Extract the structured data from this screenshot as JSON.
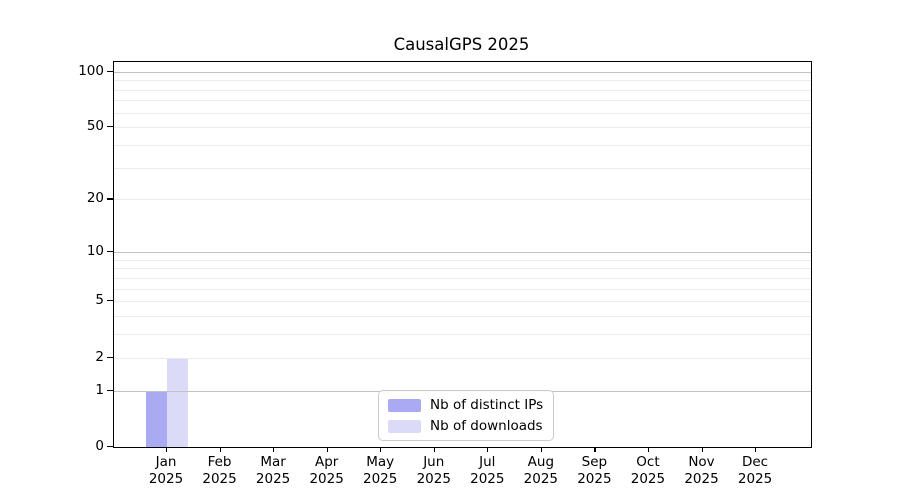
{
  "title": "CausalGPS 2025",
  "chart_data": {
    "type": "bar",
    "title": "CausalGPS 2025",
    "x_categories": [
      "Jan",
      "Feb",
      "Mar",
      "Apr",
      "May",
      "Jun",
      "Jul",
      "Aug",
      "Sep",
      "Oct",
      "Nov",
      "Dec"
    ],
    "x_year_label": "2025",
    "series": [
      {
        "name": "Nb of distinct IPs",
        "color": "#aaaaf2",
        "values": [
          1,
          0,
          0,
          0,
          0,
          0,
          0,
          0,
          0,
          0,
          0,
          0
        ]
      },
      {
        "name": "Nb of downloads",
        "color": "#dbdbf8",
        "values": [
          2,
          0,
          0,
          0,
          0,
          0,
          0,
          0,
          0,
          0,
          0,
          0
        ]
      }
    ],
    "y_scale": "log10(1+v)",
    "y_tick_labels": [
      0,
      1,
      2,
      5,
      10,
      20,
      50,
      100
    ],
    "y_major_gridlines": [
      1,
      10,
      100
    ],
    "y_minor_gridlines": [
      2,
      3,
      4,
      5,
      6,
      7,
      8,
      9,
      20,
      30,
      40,
      50,
      60,
      70,
      80,
      90
    ],
    "ylim": [
      0,
      113
    ],
    "grid": "horizontal",
    "legend_position": "bottom-center",
    "colors": {
      "major_grid": "#c2c2c2",
      "minor_grid": "#ebebeb",
      "axis": "#000000",
      "text": "#000000",
      "legend_border": "#cccccc"
    }
  }
}
